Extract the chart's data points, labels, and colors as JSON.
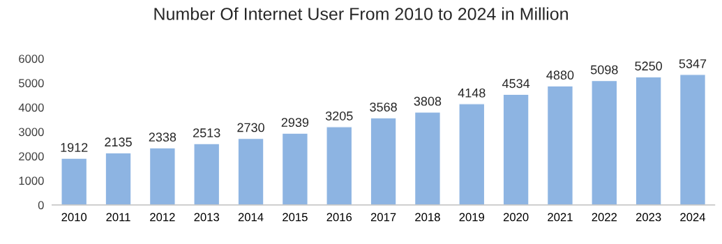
{
  "chart_data": {
    "type": "bar",
    "title": "Number Of Internet User From 2010 to 2024 in Million",
    "categories": [
      "2010",
      "2011",
      "2012",
      "2013",
      "2014",
      "2015",
      "2016",
      "2017",
      "2018",
      "2019",
      "2020",
      "2021",
      "2022",
      "2023",
      "2024"
    ],
    "values": [
      1912,
      2135,
      2338,
      2513,
      2730,
      2939,
      3205,
      3568,
      3808,
      4148,
      4534,
      4880,
      5098,
      5250,
      5347
    ],
    "color": "#8db4e2",
    "ylim": [
      0,
      6000
    ],
    "yticks": [
      0,
      1000,
      2000,
      3000,
      4000,
      5000,
      6000
    ],
    "data_labels": true,
    "grid": false,
    "legend": false
  }
}
